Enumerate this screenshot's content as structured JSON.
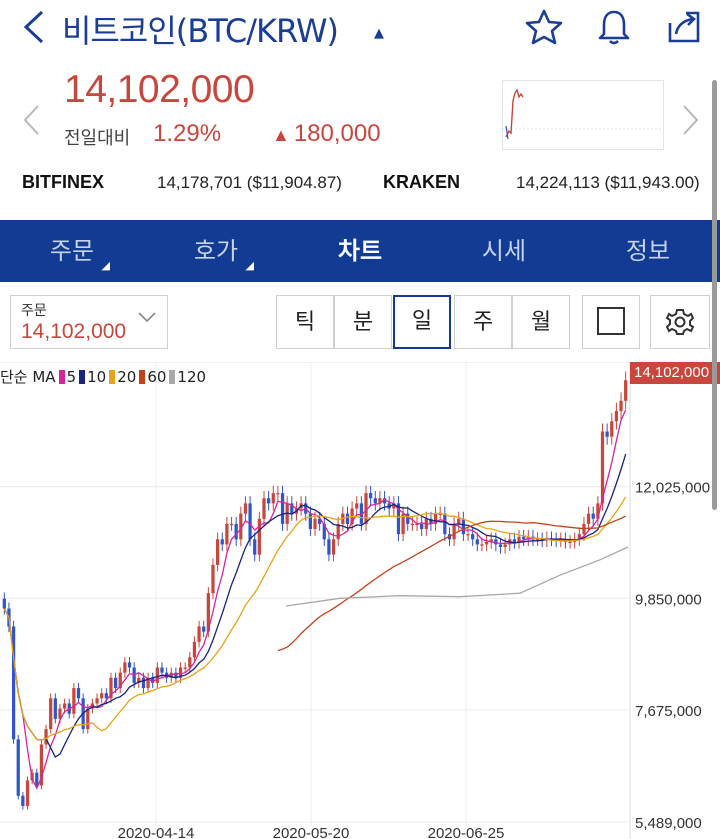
{
  "header": {
    "title": "비트코인(BTC/KRW)",
    "icons": [
      "back-icon",
      "star-icon",
      "bell-icon",
      "share-icon"
    ]
  },
  "price": {
    "current": "14,102,000",
    "change_label": "전일대비",
    "change_pct": "1.29%",
    "change_amt": "180,000",
    "color": "#c8463c"
  },
  "exchanges": [
    {
      "name": "BITFINEX",
      "value": "14,178,701 ($11,904.87)"
    },
    {
      "name": "KRAKEN",
      "value": "14,224,113 ($11,943.00)"
    }
  ],
  "tabs": [
    {
      "label": "주문",
      "active": false
    },
    {
      "label": "호가",
      "active": false
    },
    {
      "label": "차트",
      "active": true
    },
    {
      "label": "시세",
      "active": false
    },
    {
      "label": "정보",
      "active": false
    }
  ],
  "toolbar": {
    "order_label": "주문",
    "order_value": "14,102,000",
    "periods": [
      "틱",
      "분",
      "일",
      "주",
      "월"
    ],
    "active_period": "일"
  },
  "legend": {
    "type": "단순 MA",
    "ma": [
      {
        "n": "5",
        "color": "#d6249f"
      },
      {
        "n": "10",
        "color": "#1a237e"
      },
      {
        "n": "20",
        "color": "#e8a317"
      },
      {
        "n": "60",
        "color": "#c0441a"
      },
      {
        "n": "120",
        "color": "#a8a8a8"
      }
    ]
  },
  "chart_data": {
    "type": "candlestick",
    "y_ticks": [
      "12,025,000",
      "9,850,000",
      "7,675,000",
      "5,489,000"
    ],
    "y_tick_values": [
      12025000,
      9850000,
      7675000,
      5489000
    ],
    "ylim": [
      5489000,
      14300000
    ],
    "x_ticks": [
      "2020-04-14",
      "2020-05-20",
      "2020-06-25"
    ],
    "last_price_label": "14,102,000",
    "last_price": 14102000,
    "up_color": "#c8463c",
    "down_color": "#2e56c8",
    "candles_close": [
      9650000,
      9300000,
      7100000,
      6000000,
      5800000,
      6300000,
      6450000,
      6200000,
      7000000,
      7300000,
      7900000,
      7500000,
      7700000,
      7800000,
      7600000,
      8100000,
      7900000,
      7300000,
      7700000,
      7800000,
      7900000,
      8000000,
      7900000,
      8300000,
      8100000,
      8400000,
      8600000,
      8500000,
      8200000,
      8300000,
      8100000,
      8300000,
      8200000,
      8500000,
      8400000,
      8300000,
      8400000,
      8300000,
      8500000,
      8500000,
      8700000,
      9000000,
      9300000,
      9200000,
      9950000,
      10500000,
      11000000,
      10900000,
      11300000,
      11300000,
      11000000,
      11500000,
      11700000,
      11000000,
      10700000,
      11400000,
      11800000,
      11700000,
      11900000,
      11900000,
      11300000,
      11700000,
      11500000,
      11600000,
      11700000,
      11500000,
      11200000,
      11400000,
      11300000,
      11000000,
      10700000,
      11000000,
      11300000,
      11500000,
      11300000,
      11600000,
      11700000,
      11300000,
      11900000,
      11800000,
      11700000,
      11800000,
      11700000,
      11600000,
      11700000,
      11100000,
      11500000,
      11300000,
      11300000,
      11300000,
      11200000,
      11400000,
      11300000,
      11500000,
      11500000,
      11100000,
      11000000,
      11300000,
      11400000,
      11100000,
      11100000,
      11000000,
      10900000,
      10900000,
      10950000,
      11000000,
      10900000,
      10850000,
      10900000,
      11000000,
      10950000,
      11050000,
      11000000,
      11050000,
      11000000,
      11000000,
      10980000,
      11020000,
      11000000,
      10980000,
      11000000,
      10950000,
      10950000,
      11000000,
      11100000,
      11300000,
      11500000,
      11400000,
      11700000,
      13100000,
      13000000,
      13300000,
      13500000,
      13700000,
      14102000
    ]
  }
}
